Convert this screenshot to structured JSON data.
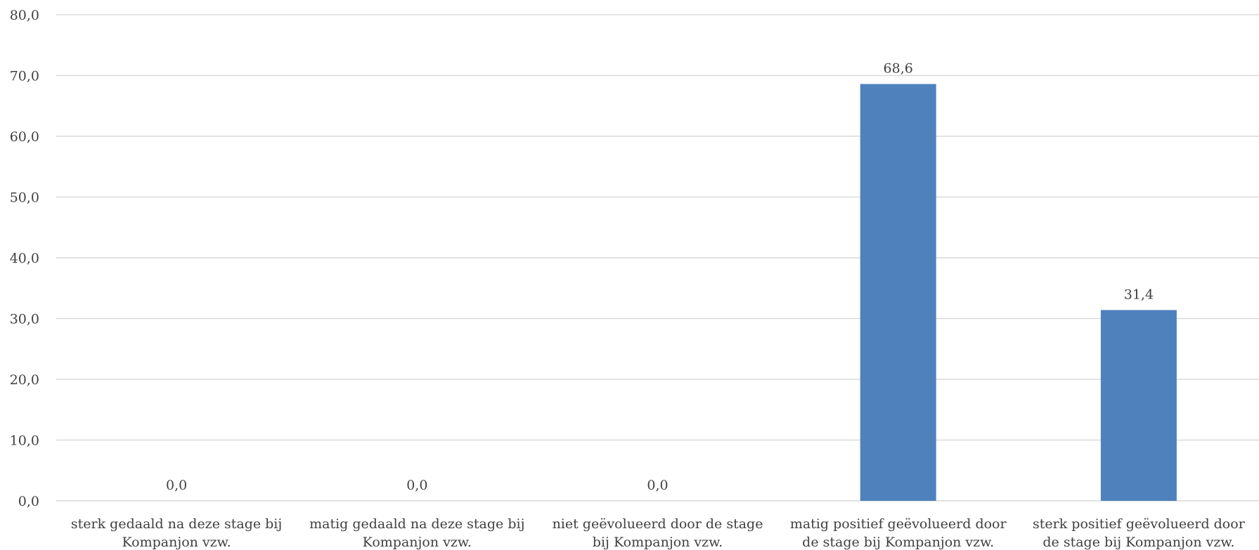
{
  "chart_data": {
    "type": "bar",
    "categories": [
      [
        "sterk gedaald na deze stage bij",
        "Kompanjon vzw."
      ],
      [
        "matig gedaald na deze stage bij",
        "Kompanjon vzw."
      ],
      [
        "niet geëvolueerd door de stage",
        "bij Kompanjon vzw."
      ],
      [
        "matig positief geëvolueerd door",
        "de stage bij Kompanjon vzw."
      ],
      [
        "sterk positief geëvolueerd door",
        "de stage bij Kompanjon vzw."
      ]
    ],
    "values": [
      0.0,
      0.0,
      0.0,
      68.6,
      31.4
    ],
    "data_labels": [
      "0,0",
      "0,0",
      "0,0",
      "68,6",
      "31,4"
    ],
    "y_ticks": [
      "0,0",
      "10,0",
      "20,0",
      "30,0",
      "40,0",
      "50,0",
      "60,0",
      "70,0",
      "80,0"
    ],
    "ylim": [
      0,
      80
    ],
    "grid": true,
    "legend": "none",
    "bar_color": "#4f81bd"
  }
}
